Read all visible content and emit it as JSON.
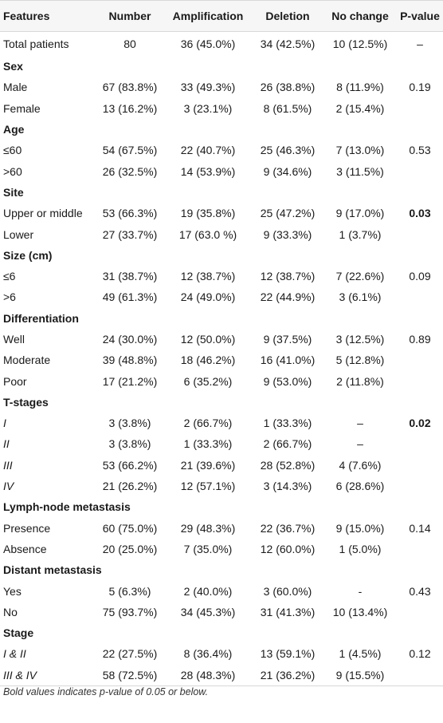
{
  "headers": [
    "Features",
    "Number",
    "Amplification",
    "Deletion",
    "No change",
    "P-value"
  ],
  "rows": [
    {
      "type": "total",
      "cells": [
        "Total patients",
        "80",
        "36 (45.0%)",
        "34 (42.5%)",
        "10 (12.5%)",
        "–"
      ]
    },
    {
      "type": "section",
      "label": "Sex"
    },
    {
      "type": "data",
      "cells": [
        "Male",
        "67 (83.8%)",
        "33 (49.3%)",
        "26 (38.8%)",
        "8 (11.9%)",
        "0.19"
      ]
    },
    {
      "type": "data",
      "cells": [
        "Female",
        "13 (16.2%)",
        "3 (23.1%)",
        "8 (61.5%)",
        "2 (15.4%)",
        ""
      ]
    },
    {
      "type": "section",
      "label": "Age"
    },
    {
      "type": "data",
      "cells": [
        "≤60",
        "54 (67.5%)",
        "22 (40.7%)",
        "25 (46.3%)",
        "7 (13.0%)",
        "0.53"
      ]
    },
    {
      "type": "data",
      "cells": [
        ">60",
        "26 (32.5%)",
        "14 (53.9%)",
        "9 (34.6%)",
        "3 (11.5%)",
        ""
      ]
    },
    {
      "type": "section",
      "label": "Site"
    },
    {
      "type": "data",
      "cells": [
        "Upper or middle",
        "53 (66.3%)",
        "19 (35.8%)",
        "25 (47.2%)",
        "9 (17.0%)",
        "0.03"
      ],
      "bold_p": true
    },
    {
      "type": "data",
      "cells": [
        "Lower",
        "27 (33.7%)",
        "17 (63.0 %)",
        "9 (33.3%)",
        "1 (3.7%)",
        ""
      ]
    },
    {
      "type": "section",
      "label": "Size (cm)"
    },
    {
      "type": "data",
      "cells": [
        "≤6",
        "31 (38.7%)",
        "12 (38.7%)",
        "12 (38.7%)",
        "7 (22.6%)",
        "0.09"
      ]
    },
    {
      "type": "data",
      "cells": [
        ">6",
        "49 (61.3%)",
        "24 (49.0%)",
        "22 (44.9%)",
        "3 (6.1%)",
        ""
      ]
    },
    {
      "type": "section",
      "label": "Differentiation"
    },
    {
      "type": "data",
      "cells": [
        "Well",
        "24 (30.0%)",
        "12 (50.0%)",
        "9 (37.5%)",
        "3 (12.5%)",
        "0.89"
      ]
    },
    {
      "type": "data",
      "cells": [
        "Moderate",
        "39 (48.8%)",
        "18 (46.2%)",
        "16 (41.0%)",
        "5 (12.8%)",
        ""
      ]
    },
    {
      "type": "data",
      "cells": [
        "Poor",
        "17 (21.2%)",
        "6 (35.2%)",
        "9 (53.0%)",
        "2 (11.8%)",
        ""
      ]
    },
    {
      "type": "section",
      "label": "T-stages"
    },
    {
      "type": "data",
      "cells": [
        "I",
        "3 (3.8%)",
        "2 (66.7%)",
        "1 (33.3%)",
        "–",
        "0.02"
      ],
      "italic_label": true,
      "bold_p": true
    },
    {
      "type": "data",
      "cells": [
        "II",
        "3 (3.8%)",
        "1 (33.3%)",
        "2 (66.7%)",
        "–",
        ""
      ],
      "italic_label": true
    },
    {
      "type": "data",
      "cells": [
        "III",
        "53 (66.2%)",
        "21 (39.6%)",
        "28 (52.8%)",
        "4 (7.6%)",
        ""
      ],
      "italic_label": true
    },
    {
      "type": "data",
      "cells": [
        "IV",
        "21 (26.2%)",
        "12 (57.1%)",
        "3 (14.3%)",
        "6 (28.6%)",
        ""
      ],
      "italic_label": true
    },
    {
      "type": "section",
      "label": "Lymph-node metastasis"
    },
    {
      "type": "data",
      "cells": [
        "Presence",
        "60 (75.0%)",
        "29 (48.3%)",
        "22 (36.7%)",
        "9 (15.0%)",
        "0.14"
      ]
    },
    {
      "type": "data",
      "cells": [
        "Absence",
        "20 (25.0%)",
        "7 (35.0%)",
        "12 (60.0%)",
        "1 (5.0%)",
        ""
      ]
    },
    {
      "type": "section",
      "label": "Distant metastasis"
    },
    {
      "type": "data",
      "cells": [
        "Yes",
        "5 (6.3%)",
        "2 (40.0%)",
        "3 (60.0%)",
        "-",
        "0.43"
      ]
    },
    {
      "type": "data",
      "cells": [
        "No",
        "75 (93.7%)",
        "34 (45.3%)",
        "31 (41.3%)",
        "10 (13.4%)",
        ""
      ]
    },
    {
      "type": "section",
      "label": "Stage"
    },
    {
      "type": "data",
      "cells": [
        "I & II",
        "22 (27.5%)",
        "8 (36.4%)",
        "13 (59.1%)",
        "1 (4.5%)",
        "0.12"
      ],
      "italic_label": true
    },
    {
      "type": "data",
      "cells": [
        "III & IV",
        "58 (72.5%)",
        "28 (48.3%)",
        "21 (36.2%)",
        "9 (15.5%)",
        ""
      ],
      "italic_label": true
    }
  ],
  "footnote": "Bold values indicates p-value of 0.05 or below."
}
